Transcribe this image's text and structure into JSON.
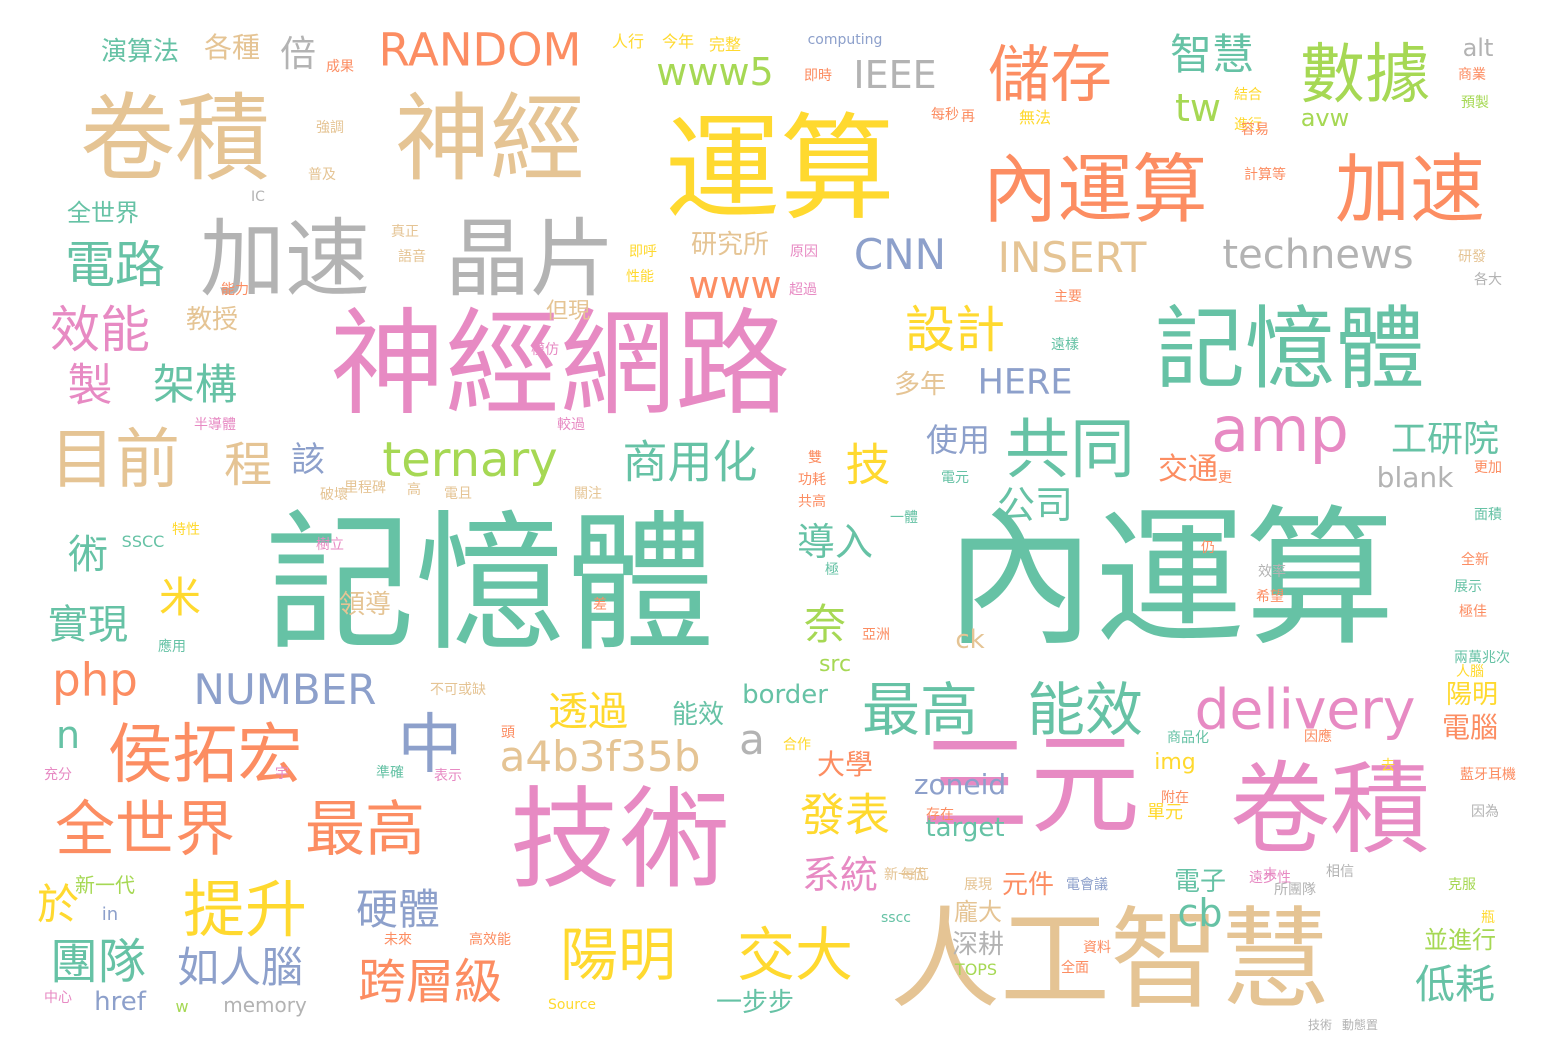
{
  "colors": {
    "green": "#66c2a5",
    "orange": "#fc8d62",
    "blue": "#8da0cb",
    "pink": "#e78ac3",
    "lime": "#a6d854",
    "yellow": "#ffd92f",
    "tan": "#e5c494",
    "gray": "#b3b3b3"
  },
  "words": [
    "記憶體",
    "內運算",
    "神經網路",
    "技術",
    "人工智慧",
    "三元",
    "卷積",
    "運算",
    "卷積",
    "神經",
    "記憶體",
    "加速",
    "晶片",
    "內運算",
    "加速",
    "數據",
    "儲存",
    "共同",
    "amp",
    "目前",
    "侯拓宏",
    "中",
    "全世界",
    "最高",
    "技術",
    "陽明",
    "交大",
    "最高",
    "能效",
    "delivery",
    "RANDOM",
    "www5",
    "IEEE",
    "智慧",
    "tw",
    "CNN",
    "INSERT",
    "technews",
    "www",
    "設計",
    "電路",
    "效能",
    "製",
    "架構",
    "程",
    "該",
    "ternary",
    "商用化",
    "技",
    "公司",
    "工研院",
    "blank",
    "術",
    "米",
    "導入",
    "奈",
    "實現",
    "php",
    "NUMBER",
    "a",
    "透過",
    "a4b3f35b",
    "n",
    "發表",
    "系統",
    "提升",
    "硬體",
    "團隊",
    "如人腦",
    "跨層級",
    "於",
    "cb",
    "低耗",
    "演算法",
    "各種",
    "倍",
    "全世界",
    "研究所",
    "教授",
    "使用",
    "HERE",
    "多年",
    "交通",
    "陽明",
    "電腦",
    "zoneid",
    "img",
    "border",
    "能效",
    "大學",
    "target",
    "元件",
    "電子",
    "深耕",
    "一步步",
    "href",
    "memory",
    "alt",
    "avw",
    "computing",
    "領導",
    "src",
    "ck",
    "單元",
    "龐大",
    "並進行",
    "但現",
    "新一代",
    "in",
    "Source",
    "TOPS",
    "IC",
    "人行",
    "今年",
    "完整",
    "成果",
    "即時",
    "強調",
    "普及",
    "每秒",
    "再",
    "無法",
    "結合",
    "進行",
    "容易",
    "商業",
    "預製",
    "計算等",
    "真正",
    "語音",
    "即呼",
    "性能",
    "原因",
    "超過",
    "能力",
    "主要",
    "遠樣",
    "較過",
    "模仿",
    "半導體",
    "不可或缺",
    "電元",
    "展現",
    "新一代",
    "每瓦",
    "相信",
    "克服",
    "瓶",
    "所團隊",
    "電會議",
    "資料",
    "全面",
    "高效能",
    "未來",
    "中心",
    "w",
    "更加",
    "更",
    "面積",
    "全新",
    "展示",
    "極佳",
    "效率",
    "希望",
    "兩萬兆次",
    "人腦",
    "因應",
    "商品化",
    "存在",
    "附在",
    "合作",
    "去",
    "藍牙耳機",
    "因為",
    "充分",
    "表示",
    "準確",
    "頭",
    "宇",
    "末",
    "sscc",
    "遠步性",
    "SSCC",
    "應用",
    "樹立",
    "特性",
    "差",
    "亞洲",
    "仍",
    "極",
    "一體",
    "雙",
    "功耗",
    "共高",
    "破壞",
    "里程碑",
    "高",
    "電且",
    "關注",
    "各大",
    "研發",
    "動態置"
  ]
}
